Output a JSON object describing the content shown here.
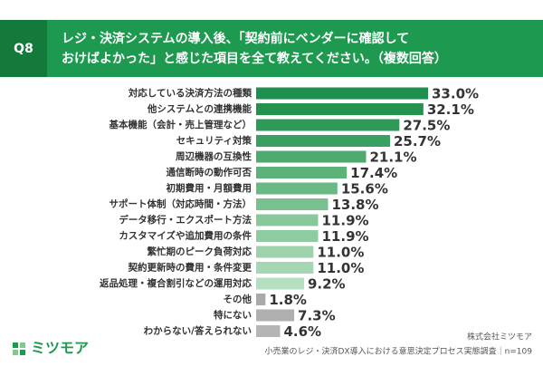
{
  "chart_data": {
    "type": "bar",
    "orientation": "horizontal",
    "question": "Q8",
    "title_lines": [
      "レジ・決済システムの導入後、「契約前にベンダーに確認して",
      "おけばよかった」と感じた項目を全て教えてください。（複数回答）"
    ],
    "categories": [
      "対応している決済方法の種類",
      "他システムとの連携機能",
      "基本機能（会計・売上管理など）",
      "セキュリティ対策",
      "周辺機器の互換性",
      "通信断時の動作可否",
      "初期費用・月額費用",
      "サポート体制（対応時間・方法）",
      "データ移行・エクスポート方法",
      "カスタマイズや追加費用の条件",
      "繁忙期のピーク負荷対応",
      "契約更新時の費用・条件変更",
      "返品処理・複合割引などの運用対応",
      "その他",
      "特にない",
      "わからない/答えられない"
    ],
    "values": [
      33.0,
      32.1,
      27.5,
      25.7,
      21.1,
      17.4,
      15.6,
      13.8,
      11.9,
      11.9,
      11.0,
      11.0,
      9.2,
      1.8,
      7.3,
      4.6
    ],
    "value_labels": [
      "33.0%",
      "32.1%",
      "27.5%",
      "25.7%",
      "21.1%",
      "17.4%",
      "15.6%",
      "13.8%",
      "11.9%",
      "11.9%",
      "11.0%",
      "11.0%",
      "9.2%",
      "1.8%",
      "7.3%",
      "4.6%"
    ],
    "colors": [
      "#1e8f4e",
      "#23924f",
      "#2f9a58",
      "#3aa061",
      "#4eaa6e",
      "#5db27a",
      "#69b984",
      "#78c08f",
      "#88c89b",
      "#8fcba1",
      "#9dd2ad",
      "#a6d7b4",
      "#b5dfc1",
      "#a9a9a9",
      "#afafaf",
      "#b5b5b5"
    ],
    "brand": "ミツモア",
    "company": "株式会社ミツモア",
    "source": "小売業のレジ・決済DX導入における意思決定プロセス実態調査｜n=109"
  }
}
